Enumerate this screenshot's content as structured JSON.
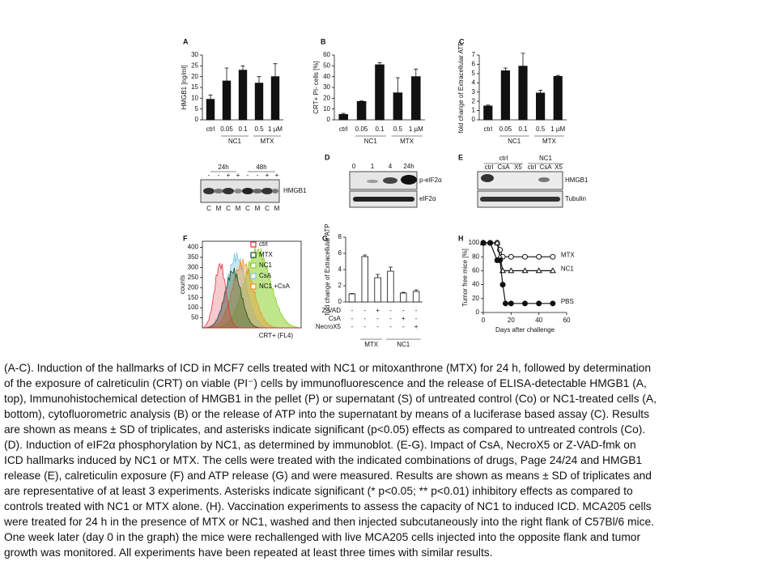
{
  "chart_data": [
    {
      "type": "bar",
      "panel": "A",
      "y_label": "HMGB1 [ng/ml]",
      "categories": [
        "ctrl",
        "0.05",
        "0.1",
        "0.5",
        "1 µM"
      ],
      "groups": [
        "NC1",
        "MTX"
      ],
      "values": [
        9.5,
        18,
        23,
        17,
        20
      ],
      "errors": [
        2,
        6,
        2,
        3,
        6
      ],
      "color": "#111111",
      "ylim": [
        0,
        30
      ],
      "yticks": [
        0,
        5,
        10,
        15,
        20,
        25,
        30
      ]
    },
    {
      "type": "bar",
      "panel": "B",
      "y_label": "CRT+ PI- cells [%]",
      "categories": [
        "ctrl",
        "0.05",
        "0.1",
        "0.5",
        "1 µM"
      ],
      "groups": [
        "NC1",
        "MTX"
      ],
      "values": [
        5,
        17,
        51,
        25,
        40
      ],
      "errors": [
        1,
        0.5,
        2,
        14,
        7
      ],
      "color": "#111111",
      "ylim": [
        0,
        60
      ],
      "yticks": [
        0,
        10,
        20,
        30,
        40,
        50,
        60
      ]
    },
    {
      "type": "bar",
      "panel": "C",
      "y_label": "fold change of Extracellular ATP",
      "categories": [
        "ctrl",
        "0.05",
        "0.1",
        "0.5",
        "1 µM"
      ],
      "groups": [
        "NC1",
        "MTX"
      ],
      "values": [
        1.5,
        5.3,
        5.8,
        2.9,
        4.7
      ],
      "errors": [
        0.1,
        0.3,
        1.4,
        0.3,
        0.1
      ],
      "color": "#111111",
      "ylim": [
        0,
        7
      ],
      "yticks": [
        0,
        1,
        2,
        3,
        4,
        5,
        6,
        7
      ]
    },
    {
      "type": "flow",
      "panel": "F",
      "y_label": "counts",
      "x_label": "CRT+ (FL4)",
      "ylim": [
        0,
        430
      ],
      "yticks": [
        50,
        100,
        150,
        200,
        250,
        300,
        350,
        400
      ],
      "series": [
        {
          "name": "ctrl",
          "color": "#e0303a"
        },
        {
          "name": "MTX",
          "color": "#1f4d1f"
        },
        {
          "name": "NC1",
          "color": "#8bd12a"
        },
        {
          "name": "CsA",
          "color": "#7ec8e3"
        },
        {
          "name": "NC1 +CsA",
          "color": "#f0902a"
        }
      ]
    },
    {
      "type": "bar",
      "panel": "G",
      "y_label": "fold change of Extracellular ATP",
      "groups": [
        "MTX",
        "NC1"
      ],
      "conditions": [
        {
          "name": "Z-VAD",
          "signs": [
            "-",
            "-",
            "+",
            "-",
            "-",
            "-"
          ]
        },
        {
          "name": "CsA",
          "signs": [
            "-",
            "-",
            "-",
            "-",
            "+",
            "-"
          ]
        },
        {
          "name": "NecroX5",
          "signs": [
            "-",
            "-",
            "-",
            "-",
            "-",
            "+"
          ]
        }
      ],
      "values": [
        1,
        5.6,
        3.0,
        3.8,
        1.1,
        1.3
      ],
      "errors": [
        0.05,
        0.2,
        0.4,
        0.5,
        0.1,
        0.2
      ],
      "color": "#ffffff",
      "ylim": [
        0,
        8
      ],
      "yticks": [
        0,
        2,
        4,
        6,
        8
      ]
    },
    {
      "type": "line",
      "panel": "H",
      "y_label": "Tumor free mice [%]",
      "x_label": "Days after challenge",
      "xlim": [
        0,
        60
      ],
      "xticks": [
        0,
        20,
        40,
        60
      ],
      "ylim": [
        0,
        100
      ],
      "yticks": [
        0,
        20,
        40,
        60,
        80,
        100
      ],
      "series": [
        {
          "name": "MTX",
          "marker": "open-circle",
          "color": "#111111",
          "x": [
            0,
            5,
            10,
            12,
            14,
            20,
            30,
            40,
            50
          ],
          "values": [
            100,
            100,
            100,
            90,
            80,
            80,
            80,
            80,
            80
          ]
        },
        {
          "name": "NC1",
          "marker": "open-triangle",
          "color": "#111111",
          "x": [
            0,
            10,
            12,
            14,
            20,
            30,
            40,
            50
          ],
          "values": [
            100,
            100,
            80,
            60,
            60,
            60,
            60,
            60
          ]
        },
        {
          "name": "PBS",
          "marker": "filled-circle",
          "color": "#111111",
          "x": [
            0,
            5,
            10,
            12,
            14,
            16,
            20,
            30,
            40,
            50
          ],
          "values": [
            100,
            100,
            75,
            75,
            40,
            13,
            13,
            13,
            13,
            13
          ]
        }
      ]
    }
  ],
  "blots": {
    "a_bottom": {
      "times": [
        "24h",
        "48h"
      ],
      "signs": [
        "-",
        "-",
        "+",
        "+",
        "-",
        "-",
        "+",
        "+"
      ],
      "lanes": [
        "C",
        "M",
        "C",
        "M",
        "C",
        "M",
        "C",
        "M"
      ],
      "band": "HMGB1"
    },
    "d": {
      "panel": "D",
      "lanes": [
        "0",
        "1",
        "4",
        "24h"
      ],
      "bands": [
        "p-eIF2α",
        "eIF2α"
      ]
    },
    "e": {
      "panel": "E",
      "groups": [
        "ctrl",
        "NC1"
      ],
      "lanes": [
        "ctrl",
        "CsA",
        "X5",
        "ctrl",
        "CsA",
        "X5"
      ],
      "bands": [
        "HMGB1",
        "Tubulin"
      ]
    }
  },
  "caption": {
    "lines": [
      "(A-C). Induction of the hallmarks of ICD in MCF7 cells treated with NC1 or mitoxanthrone (MTX) for 24 h, followed by determination",
      "of the exposure of calreticulin (CRT) on viable (PI⁻) cells by immunofluorescence and the release of ELISA-detectable HMGB1 (A,",
      "top), Immunohistochemical detection of HMGB1 in the pellet (P) or supernatant (S) of untreated control (Co) or NC1-treated cells (A,",
      "bottom), cytofluorometric analysis (B) or the release of ATP into the supernatant by means of a luciferase based assay (C). Results",
      "are shown as means ± SD of triplicates, and asterisks indicate significant (p<0.05) effects as compared to untreated controls (Co).",
      "(D). Induction of eIF2α phosphorylation by NC1, as determined by immunoblot. (E-G). Impact of CsA, NecroX5 or Z-VAD-fmk on",
      "ICD hallmarks induced by NC1 or MTX. The cells were treated with the indicated combinations of drugs, Page 24/24 and HMGB1",
      "release (E), calreticulin exposure (F) and ATP release (G) and were measured. Results are shown as means ± SD of triplicates and",
      "are representative of at least 3 experiments. Asterisks indicate significant (* p<0.05; ** p<0.01) inhibitory effects as compared to",
      "controls treated with NC1 or MTX alone. (H). Vaccination experiments to assess the capacity of NC1 to induced ICD. MCA205 cells",
      "were treated for 24 h in the presence of MTX or NC1, washed and then injected subcutaneously into the right flank of C57Bl/6 mice.",
      "One week later (day 0 in the graph) the mice were rechallenged with live MCA205 cells injected into the opposite flank and tumor",
      "growth was monitored. All experiments have been repeated at least three times with similar results."
    ]
  }
}
